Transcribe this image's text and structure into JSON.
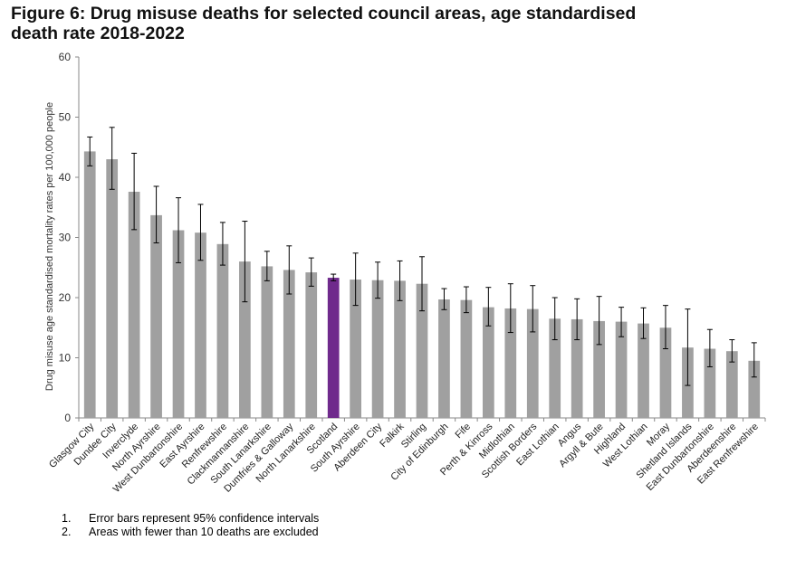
{
  "title_line1": "Figure 6: Drug misuse deaths for selected council areas, age standardised",
  "title_line2": "death rate 2018-2022",
  "colors": {
    "bar": "#a0a0a0",
    "highlight": "#6f2a8c",
    "axis": "#888888",
    "error": "#000000"
  },
  "chart_data": {
    "type": "bar",
    "title": "Figure 6: Drug misuse deaths for selected council areas, age standardised death rate 2018-2022",
    "xlabel": "",
    "ylabel": "Drug misuse age standardised mortality rates per 100,000 people",
    "ylim": [
      0,
      60
    ],
    "yticks": [
      0,
      10,
      20,
      30,
      40,
      50,
      60
    ],
    "grid": false,
    "highlight": "Scotland",
    "categories": [
      "Glasgow City",
      "Dundee City",
      "Inverclyde",
      "North Ayrshire",
      "West Dunbartonshire",
      "East Ayrshire",
      "Renfrewshire",
      "Clackmannanshire",
      "South Lanarkshire",
      "Dumfries & Galloway",
      "North Lanarkshire",
      "Scotland",
      "South Ayrshire",
      "Aberdeen City",
      "Falkirk",
      "Stirling",
      "City of Edinburgh",
      "Fife",
      "Perth & Kinross",
      "Midlothian",
      "Scottish Borders",
      "East Lothian",
      "Angus",
      "Argyll & Bute",
      "Highland",
      "West Lothian",
      "Moray",
      "Shetland Islands",
      "East Dunbartonshire",
      "Aberdeenshire",
      "East Renfrewshire"
    ],
    "values": [
      44.3,
      43.0,
      37.6,
      33.7,
      31.2,
      30.8,
      28.9,
      26.0,
      25.2,
      24.6,
      24.2,
      23.3,
      23.0,
      22.9,
      22.8,
      22.3,
      19.7,
      19.6,
      18.4,
      18.2,
      18.1,
      16.5,
      16.4,
      16.1,
      16.0,
      15.7,
      15.0,
      11.7,
      11.5,
      11.1,
      9.5
    ],
    "ci_lower": [
      41.9,
      38.0,
      31.3,
      29.1,
      25.8,
      26.2,
      25.4,
      19.3,
      22.8,
      20.6,
      21.9,
      22.8,
      18.7,
      19.9,
      19.5,
      17.8,
      18.0,
      17.5,
      15.3,
      14.2,
      14.3,
      13.0,
      13.0,
      12.2,
      13.5,
      13.2,
      11.5,
      5.4,
      8.5,
      9.3,
      6.8
    ],
    "ci_upper": [
      46.7,
      48.3,
      44.0,
      38.5,
      36.6,
      35.5,
      32.5,
      32.7,
      27.7,
      28.6,
      26.6,
      23.9,
      27.4,
      25.9,
      26.1,
      26.8,
      21.5,
      21.8,
      21.7,
      22.3,
      22.0,
      20.0,
      19.8,
      20.2,
      18.4,
      18.3,
      18.7,
      18.1,
      14.7,
      13.0,
      12.5
    ]
  },
  "notes": [
    {
      "num": "1.",
      "text": "Error bars represent 95% confidence intervals"
    },
    {
      "num": "2.",
      "text": "Areas with fewer than 10 deaths are excluded"
    }
  ]
}
